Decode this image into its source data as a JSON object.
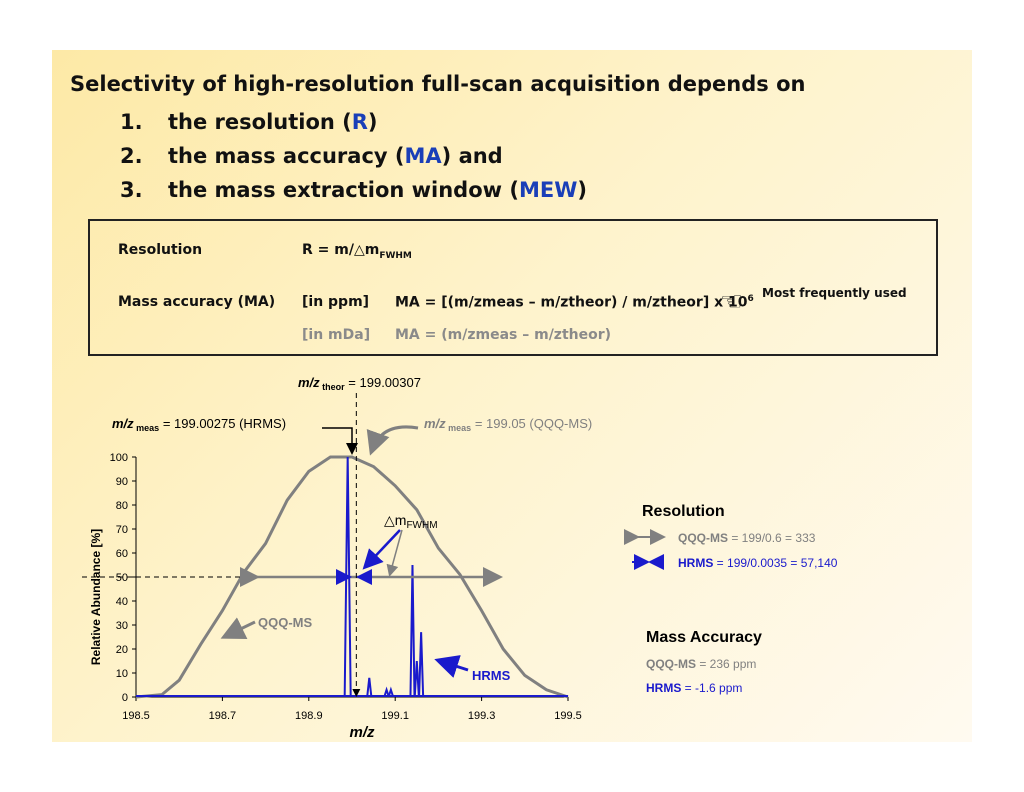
{
  "heading": "Selectivity of high-resolution full-scan acquisition depends on",
  "list": [
    {
      "num": "1.",
      "pre": "the resolution (",
      "hl": "R",
      "post": ")"
    },
    {
      "num": "2.",
      "pre": "the mass accuracy (",
      "hl": "MA",
      "post": ") and"
    },
    {
      "num": "3.",
      "pre": "the mass extraction window (",
      "hl": "MEW",
      "post": ")"
    }
  ],
  "definitions": {
    "resolution_label": "Resolution",
    "resolution_formula": "R = m/△m",
    "resolution_sub": "FWHM",
    "ma_label": "Mass accuracy (MA)",
    "ma_ppm_unit": "[in ppm]",
    "ma_ppm_formula": "MA = [(m/zmeas – m/ztheor) / m/ztheor] x 10",
    "ma_ppm_exp": "6",
    "ma_mda_unit": "[in mDa]",
    "ma_mda_formula": "MA = (m/zmeas – m/ztheor)",
    "most_used": "Most frequently used",
    "hand_icon": "pointing-hand-icon"
  },
  "annotations": {
    "theor": "m/z theor = 199.00307",
    "meas_hrms": "m/z meas = 199.00275 (HRMS)",
    "meas_qqq": "m/z meas = 199.05 (QQQ-MS)",
    "fwhm": "△mFWHM",
    "qqq_curve": "QQQ-MS",
    "hrms_peaks": "HRMS"
  },
  "chart_data": {
    "type": "line",
    "xlabel": "m/z",
    "ylabel": "Relative Abundance [%]",
    "xlim": [
      198.5,
      199.5
    ],
    "ylim": [
      0,
      100
    ],
    "xticks": [
      "198.5",
      "198.7",
      "198.9",
      "199.1",
      "199.3",
      "199.5"
    ],
    "yticks": [
      "0",
      "10",
      "20",
      "30",
      "40",
      "50",
      "60",
      "70",
      "80",
      "90",
      "100"
    ],
    "series": [
      {
        "name": "QQQ-MS",
        "color": "#808080",
        "x": [
          198.5,
          198.56,
          198.6,
          198.65,
          198.7,
          198.75,
          198.8,
          198.85,
          198.9,
          198.95,
          199.0,
          199.05,
          199.1,
          199.15,
          199.2,
          199.25,
          199.3,
          199.35,
          199.4,
          199.45,
          199.5
        ],
        "y": [
          0,
          1,
          7,
          22,
          36,
          52,
          64,
          82,
          94,
          100,
          100,
          96,
          88,
          78,
          62,
          51,
          36,
          20,
          9,
          3,
          0
        ]
      },
      {
        "name": "HRMS",
        "color": "#1a1acc",
        "x": [
          198.99,
          199.04,
          199.08,
          199.09,
          199.14,
          199.15,
          199.16
        ],
        "y": [
          100,
          8,
          3,
          3,
          55,
          15,
          27
        ]
      }
    ],
    "fwhm_level": 50
  },
  "legend": {
    "resolution_title": "Resolution",
    "qqq_name": "QQQ-MS",
    "qqq_res": " = 199/0.6 = 333",
    "hrms_name": "HRMS",
    "hrms_res": " = 199/0.0035 = 57,140",
    "ma_title": "Mass Accuracy",
    "qqq_ma": " = 236 ppm",
    "hrms_ma": " = -1.6 ppm"
  },
  "colors": {
    "blue": "#1a3fb8",
    "gray": "#808080",
    "hrms": "#1a1acc"
  }
}
